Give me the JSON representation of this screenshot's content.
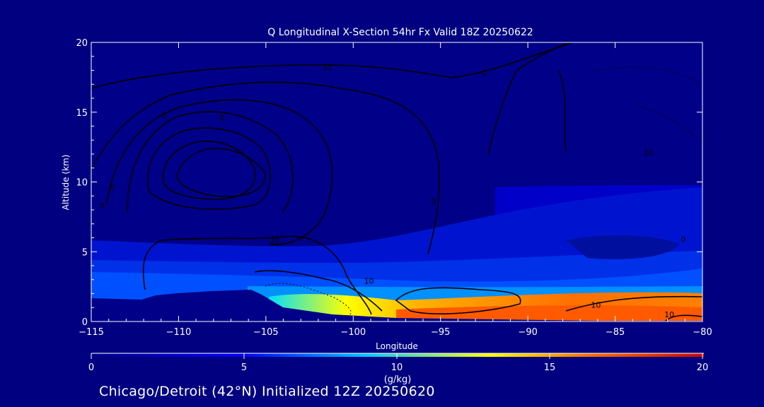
{
  "chart_data": {
    "type": "heatmap",
    "title": "Q Longitudinal X-Section 54hr  Fx Valid 18Z 20250622",
    "xlabel": "Longitude",
    "ylabel": "Altitude (km)",
    "xlim": [
      -115,
      -80
    ],
    "ylim": [
      0,
      20
    ],
    "x_ticks": [
      "-115",
      "-110",
      "-105",
      "-100",
      "-95",
      "-90",
      "-85",
      "-80"
    ],
    "y_ticks": [
      "0",
      "5",
      "10",
      "15",
      "20"
    ],
    "colorbar": {
      "label": "(g/kg)",
      "range": [
        0,
        20
      ],
      "ticks": [
        "0",
        "5",
        "10",
        "15",
        "20"
      ],
      "colors": [
        "#000088",
        "#0000ff",
        "#00c8ff",
        "#ffff00",
        "#ff6600",
        "#cc0000"
      ]
    },
    "contour_labels": [
      {
        "text": "10",
        "lon": -101.5,
        "alt": 18.2
      },
      {
        "text": "0",
        "lon": -92.5,
        "alt": 17.8
      },
      {
        "text": "0",
        "lon": -110.8,
        "alt": 14.8
      },
      {
        "text": "0",
        "lon": -107.5,
        "alt": 14.6
      },
      {
        "text": "10",
        "lon": -83.1,
        "alt": 12.1
      },
      {
        "text": "0",
        "lon": -113.8,
        "alt": 9.6
      },
      {
        "text": "0",
        "lon": -114.4,
        "alt": 8.3
      },
      {
        "text": "0",
        "lon": -95.4,
        "alt": 8.6
      },
      {
        "text": "20",
        "lon": -104.5,
        "alt": 5.8
      },
      {
        "text": "0",
        "lon": -81.1,
        "alt": 5.9
      },
      {
        "text": "10",
        "lon": -99.1,
        "alt": 2.9
      },
      {
        "text": "10",
        "lon": -86.1,
        "alt": 1.2
      },
      {
        "text": "10",
        "lon": -81.9,
        "alt": 0.5
      }
    ]
  },
  "footer": "Chicago/Detroit (42°N) Initialized 12Z 20250620"
}
